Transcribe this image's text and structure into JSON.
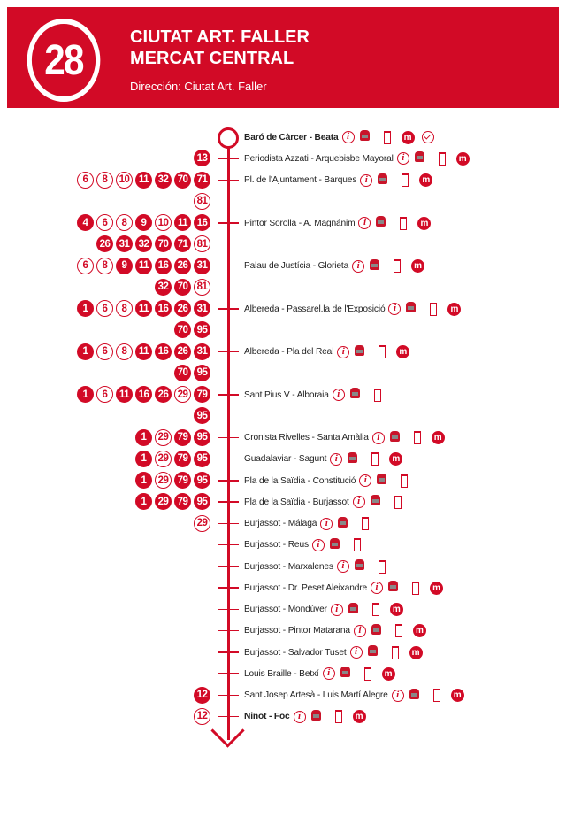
{
  "header": {
    "line_number": "28",
    "title_line1": "CIUTAT ART.  FALLER",
    "title_line2": "MERCAT CENTRAL",
    "direction": "Dirección: Ciutat Art. Faller"
  },
  "colors": {
    "brand_red": "#d20a26"
  },
  "icon_legend": {
    "info": "info-icon",
    "bus": "bus-icon",
    "stop": "bus-shelter-icon",
    "metro": "metro-icon",
    "clock": "clock-icon"
  },
  "stops": [
    {
      "name": "Baró de Càrcer - Beata",
      "bold": true,
      "lines": [],
      "icons": [
        "info",
        "bus",
        "stop",
        "metro",
        "clock"
      ]
    },
    {
      "name": "Periodista Azzati - Arquebisbe Mayoral",
      "lines": [
        [
          {
            "n": "13",
            "filled": true
          }
        ]
      ],
      "icons": [
        "info",
        "bus",
        "stop",
        "metro"
      ]
    },
    {
      "name": "Pl. de l'Ajuntament - Barques",
      "lines": [
        [
          {
            "n": "6",
            "filled": false
          },
          {
            "n": "8",
            "filled": false
          },
          {
            "n": "10",
            "filled": false
          },
          {
            "n": "11",
            "filled": true
          },
          {
            "n": "32",
            "filled": true
          },
          {
            "n": "70",
            "filled": true
          },
          {
            "n": "71",
            "filled": true
          }
        ],
        [
          {
            "n": "81",
            "filled": false
          }
        ]
      ],
      "icons": [
        "info",
        "bus",
        "stop",
        "metro"
      ]
    },
    {
      "name": "Pintor Sorolla - A. Magnánim",
      "lines": [
        [
          {
            "n": "4",
            "filled": true
          },
          {
            "n": "6",
            "filled": false
          },
          {
            "n": "8",
            "filled": false
          },
          {
            "n": "9",
            "filled": true
          },
          {
            "n": "10",
            "filled": false
          },
          {
            "n": "11",
            "filled": true
          },
          {
            "n": "16",
            "filled": true
          }
        ],
        [
          {
            "n": "26",
            "filled": true
          },
          {
            "n": "31",
            "filled": true
          },
          {
            "n": "32",
            "filled": true
          },
          {
            "n": "70",
            "filled": true
          },
          {
            "n": "71",
            "filled": true
          },
          {
            "n": "81",
            "filled": false
          }
        ]
      ],
      "icons": [
        "info",
        "bus",
        "stop",
        "metro"
      ]
    },
    {
      "name": "Palau de Justícia - Glorieta",
      "lines": [
        [
          {
            "n": "6",
            "filled": false
          },
          {
            "n": "8",
            "filled": false
          },
          {
            "n": "9",
            "filled": true
          },
          {
            "n": "11",
            "filled": true
          },
          {
            "n": "16",
            "filled": true
          },
          {
            "n": "26",
            "filled": true
          },
          {
            "n": "31",
            "filled": true
          }
        ],
        [
          {
            "n": "32",
            "filled": true
          },
          {
            "n": "70",
            "filled": true
          },
          {
            "n": "81",
            "filled": false
          }
        ]
      ],
      "icons": [
        "info",
        "bus",
        "stop",
        "metro"
      ]
    },
    {
      "name": "Albereda - Passarel.la de l'Exposició",
      "lines": [
        [
          {
            "n": "1",
            "filled": true
          },
          {
            "n": "6",
            "filled": false
          },
          {
            "n": "8",
            "filled": false
          },
          {
            "n": "11",
            "filled": true
          },
          {
            "n": "16",
            "filled": true
          },
          {
            "n": "26",
            "filled": true
          },
          {
            "n": "31",
            "filled": true
          }
        ],
        [
          {
            "n": "70",
            "filled": true
          },
          {
            "n": "95",
            "filled": true
          }
        ]
      ],
      "icons": [
        "info",
        "bus",
        "stop",
        "metro"
      ]
    },
    {
      "name": "Albereda - Pla del Real",
      "lines": [
        [
          {
            "n": "1",
            "filled": true
          },
          {
            "n": "6",
            "filled": false
          },
          {
            "n": "8",
            "filled": false
          },
          {
            "n": "11",
            "filled": true
          },
          {
            "n": "16",
            "filled": true
          },
          {
            "n": "26",
            "filled": true
          },
          {
            "n": "31",
            "filled": true
          }
        ],
        [
          {
            "n": "70",
            "filled": true
          },
          {
            "n": "95",
            "filled": true
          }
        ]
      ],
      "icons": [
        "info",
        "bus",
        "stop",
        "metro"
      ]
    },
    {
      "name": "Sant Pius V - Alboraia",
      "lines": [
        [
          {
            "n": "1",
            "filled": true
          },
          {
            "n": "6",
            "filled": false
          },
          {
            "n": "11",
            "filled": true
          },
          {
            "n": "16",
            "filled": true
          },
          {
            "n": "26",
            "filled": true
          },
          {
            "n": "29",
            "filled": false
          },
          {
            "n": "79",
            "filled": true
          }
        ],
        [
          {
            "n": "95",
            "filled": true
          }
        ]
      ],
      "icons": [
        "info",
        "bus",
        "stop"
      ]
    },
    {
      "name": "Cronista Rivelles - Santa Amàlia",
      "lines": [
        [
          {
            "n": "1",
            "filled": true
          },
          {
            "n": "29",
            "filled": false
          },
          {
            "n": "79",
            "filled": true
          },
          {
            "n": "95",
            "filled": true
          }
        ]
      ],
      "icons": [
        "info",
        "bus",
        "stop",
        "metro"
      ]
    },
    {
      "name": "Guadalaviar - Sagunt",
      "lines": [
        [
          {
            "n": "1",
            "filled": true
          },
          {
            "n": "29",
            "filled": false
          },
          {
            "n": "79",
            "filled": true
          },
          {
            "n": "95",
            "filled": true
          }
        ]
      ],
      "icons": [
        "info",
        "bus",
        "stop",
        "metro"
      ]
    },
    {
      "name": "Pla de la Saïdia - Constitució",
      "lines": [
        [
          {
            "n": "1",
            "filled": true
          },
          {
            "n": "29",
            "filled": false
          },
          {
            "n": "79",
            "filled": true
          },
          {
            "n": "95",
            "filled": true
          }
        ]
      ],
      "icons": [
        "info",
        "bus",
        "stop"
      ]
    },
    {
      "name": "Pla de la Saïdia - Burjassot",
      "lines": [
        [
          {
            "n": "1",
            "filled": true
          },
          {
            "n": "29",
            "filled": true
          },
          {
            "n": "79",
            "filled": true
          },
          {
            "n": "95",
            "filled": true
          }
        ]
      ],
      "icons": [
        "info",
        "bus",
        "stop"
      ]
    },
    {
      "name": "Burjassot - Málaga",
      "lines": [
        [
          {
            "n": "29",
            "filled": false
          }
        ]
      ],
      "icons": [
        "info",
        "bus",
        "stop"
      ]
    },
    {
      "name": "Burjassot - Reus",
      "lines": [],
      "icons": [
        "info",
        "bus",
        "stop"
      ]
    },
    {
      "name": "Burjassot - Marxalenes",
      "lines": [],
      "icons": [
        "info",
        "bus",
        "stop"
      ]
    },
    {
      "name": "Burjassot - Dr. Peset Aleixandre",
      "lines": [],
      "icons": [
        "info",
        "bus",
        "stop",
        "metro"
      ]
    },
    {
      "name": "Burjassot - Mondúver",
      "lines": [],
      "icons": [
        "info",
        "bus",
        "stop",
        "metro"
      ]
    },
    {
      "name": "Burjassot - Pintor Matarana",
      "lines": [],
      "icons": [
        "info",
        "bus",
        "stop",
        "metro"
      ]
    },
    {
      "name": "Burjassot - Salvador Tuset",
      "lines": [],
      "icons": [
        "info",
        "bus",
        "stop",
        "metro"
      ]
    },
    {
      "name": "Louis Braille - Betxí",
      "lines": [],
      "icons": [
        "info",
        "bus",
        "stop",
        "metro"
      ]
    },
    {
      "name": "Sant Josep Artesà - Luis Martí Alegre",
      "lines": [
        [
          {
            "n": "12",
            "filled": true
          }
        ]
      ],
      "icons": [
        "info",
        "bus",
        "stop",
        "metro"
      ]
    },
    {
      "name": "Ninot - Foc",
      "bold": true,
      "lines": [
        [
          {
            "n": "12",
            "filled": false
          }
        ]
      ],
      "icons": [
        "info",
        "bus",
        "stop",
        "metro"
      ]
    }
  ]
}
